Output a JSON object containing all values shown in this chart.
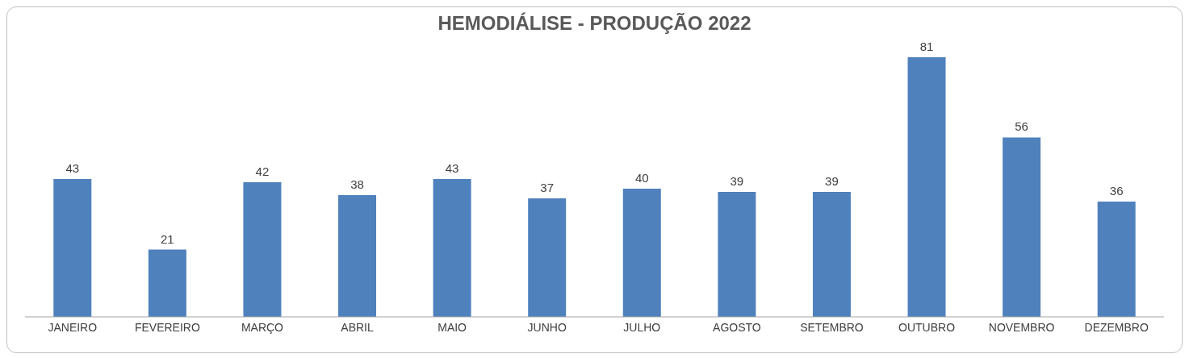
{
  "chart_data": {
    "type": "bar",
    "title": "HEMODIÁLISE - PRODUÇÃO 2022",
    "categories": [
      "JANEIRO",
      "FEVEREIRO",
      "MARÇO",
      "ABRIL",
      "MAIO",
      "JUNHO",
      "JULHO",
      "AGOSTO",
      "SETEMBRO",
      "OUTUBRO",
      "NOVEMBRO",
      "DEZEMBRO"
    ],
    "values": [
      43,
      21,
      42,
      38,
      43,
      37,
      40,
      39,
      39,
      81,
      56,
      36
    ],
    "color": "#4f81bd",
    "data_labels": true
  }
}
